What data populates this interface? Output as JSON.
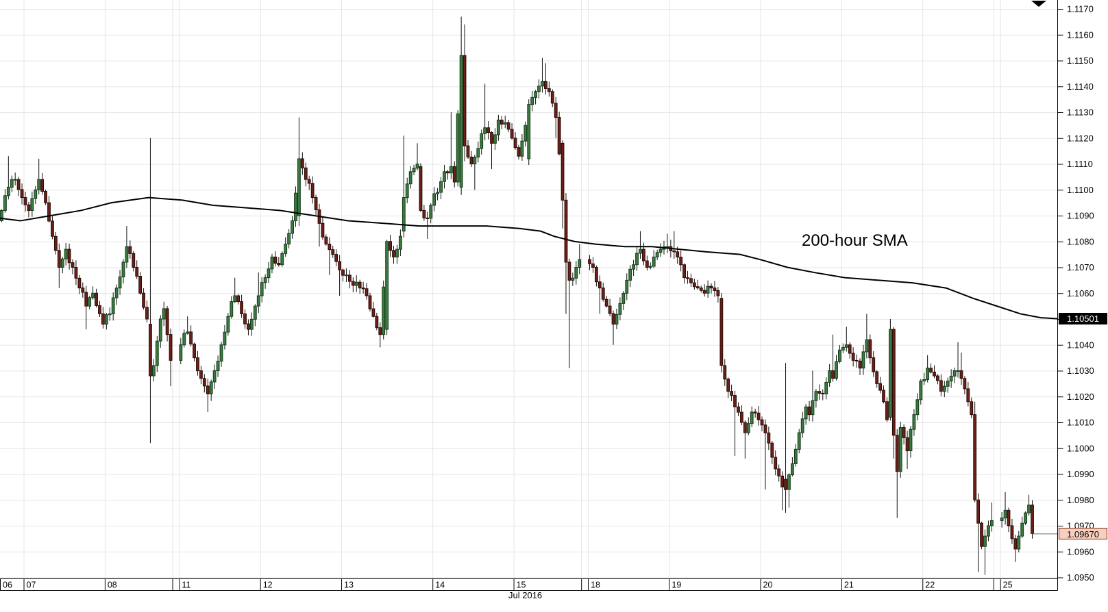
{
  "chart_data": {
    "type": "candlestick",
    "annotation": "200-hour SMA",
    "sma_end_price": "1.10501",
    "sma_end_value": 1.10501,
    "last_price": "1.09670",
    "last_value": 1.0967,
    "last_candle_slot": 305,
    "icons": {
      "chart_shift_marker": "triangle-down"
    },
    "y_axis": {
      "min": 1.095,
      "max": 1.117,
      "step": 0.001,
      "labels": [
        "1.1170",
        "1.1160",
        "1.1150",
        "1.1140",
        "1.1130",
        "1.1120",
        "1.1110",
        "1.1100",
        "1.1090",
        "1.1080",
        "1.1070",
        "1.1060",
        "1.1050",
        "1.1040",
        "1.1030",
        "1.1020",
        "1.1010",
        "1.1000",
        "1.0990",
        "1.0980",
        "1.0970",
        "1.0960",
        "1.0950"
      ]
    },
    "x_axis": {
      "month_label": "Jul 2016",
      "right_margin_slots": 7,
      "days": [
        {
          "label": "06",
          "candles": 7
        },
        {
          "label": "07",
          "candles": 24
        },
        {
          "label": "08",
          "candles": 20,
          "gap_after": 2
        },
        {
          "label": "11",
          "candles": 24
        },
        {
          "label": "12",
          "candles": 24
        },
        {
          "label": "13",
          "candles": 27
        },
        {
          "label": "14",
          "candles": 24
        },
        {
          "label": "15",
          "candles": 20,
          "gap_after": 2
        },
        {
          "label": "18",
          "candles": 24
        },
        {
          "label": "19",
          "candles": 27
        },
        {
          "label": "20",
          "candles": 24
        },
        {
          "label": "21",
          "candles": 24
        },
        {
          "label": "22",
          "candles": 21,
          "gap_after": 2
        },
        {
          "label": "25",
          "candles": 10
        }
      ]
    },
    "price_path": [
      [
        0,
        1.1092
      ],
      [
        2,
        1.1101
      ],
      [
        4,
        1.1104
      ],
      [
        6,
        1.1097
      ],
      [
        8,
        1.1092
      ],
      [
        10,
        1.11
      ],
      [
        11,
        1.1104
      ],
      [
        13,
        1.1095
      ],
      [
        15,
        1.1082
      ],
      [
        17,
        1.107
      ],
      [
        19,
        1.1077
      ],
      [
        21,
        1.107
      ],
      [
        23,
        1.1062
      ],
      [
        25,
        1.1055
      ],
      [
        27,
        1.106
      ],
      [
        29,
        1.1052
      ],
      [
        30,
        1.1048
      ],
      [
        32,
        1.1052
      ],
      [
        34,
        1.1062
      ],
      [
        36,
        1.1072
      ],
      [
        37,
        1.1078
      ],
      [
        39,
        1.107
      ],
      [
        41,
        1.106
      ],
      [
        43,
        1.105
      ],
      [
        44,
        1.1028
      ],
      [
        45,
        1.1032
      ],
      [
        47,
        1.105
      ],
      [
        48,
        1.1054
      ],
      [
        49,
        1.1044
      ],
      [
        50,
        1.1034
      ],
      [
        53,
        1.104
      ],
      [
        55,
        1.1045
      ],
      [
        57,
        1.1035
      ],
      [
        59,
        1.1027
      ],
      [
        61,
        1.1021
      ],
      [
        63,
        1.103
      ],
      [
        65,
        1.104
      ],
      [
        67,
        1.1051
      ],
      [
        69,
        1.1059
      ],
      [
        71,
        1.1052
      ],
      [
        73,
        1.1046
      ],
      [
        75,
        1.1055
      ],
      [
        76,
        1.1059
      ],
      [
        78,
        1.1066
      ],
      [
        80,
        1.1074
      ],
      [
        82,
        1.1071
      ],
      [
        84,
        1.1079
      ],
      [
        86,
        1.1088
      ],
      [
        88,
        1.1112
      ],
      [
        90,
        1.1104
      ],
      [
        92,
        1.1097
      ],
      [
        94,
        1.1087
      ],
      [
        96,
        1.1079
      ],
      [
        98,
        1.1075
      ],
      [
        100,
        1.1069
      ],
      [
        102,
        1.1067
      ],
      [
        104,
        1.1063
      ],
      [
        106,
        1.1062
      ],
      [
        108,
        1.1059
      ],
      [
        110,
        1.1051
      ],
      [
        112,
        1.1044
      ],
      [
        114,
        1.108
      ],
      [
        116,
        1.1074
      ],
      [
        118,
        1.1082
      ],
      [
        119,
        1.1097
      ],
      [
        121,
        1.1107
      ],
      [
        123,
        1.111
      ],
      [
        124,
        1.1092
      ],
      [
        126,
        1.1089
      ],
      [
        127,
        1.1094
      ],
      [
        129,
        1.1099
      ],
      [
        131,
        1.1107
      ],
      [
        133,
        1.1109
      ],
      [
        134,
        1.1103
      ],
      [
        136,
        1.1152
      ],
      [
        137,
        1.1117
      ],
      [
        139,
        1.111
      ],
      [
        141,
        1.1116
      ],
      [
        143,
        1.1124
      ],
      [
        145,
        1.1118
      ],
      [
        147,
        1.1127
      ],
      [
        149,
        1.1126
      ],
      [
        151,
        1.112
      ],
      [
        153,
        1.1113
      ],
      [
        156,
        1.1133
      ],
      [
        158,
        1.1138
      ],
      [
        160,
        1.1142
      ],
      [
        162,
        1.1138
      ],
      [
        164,
        1.1128
      ],
      [
        166,
        1.1096
      ],
      [
        167,
        1.1072
      ],
      [
        168,
        1.1065
      ],
      [
        170,
        1.107
      ],
      [
        171,
        1.1073
      ],
      [
        175,
        1.107
      ],
      [
        177,
        1.1062
      ],
      [
        179,
        1.1055
      ],
      [
        181,
        1.1048
      ],
      [
        183,
        1.1056
      ],
      [
        185,
        1.1065
      ],
      [
        187,
        1.1071
      ],
      [
        189,
        1.1077
      ],
      [
        191,
        1.107
      ],
      [
        193,
        1.1074
      ],
      [
        195,
        1.1077
      ],
      [
        197,
        1.1078
      ],
      [
        199,
        1.1076
      ],
      [
        201,
        1.1071
      ],
      [
        202,
        1.1066
      ],
      [
        204,
        1.1064
      ],
      [
        206,
        1.1062
      ],
      [
        208,
        1.106
      ],
      [
        210,
        1.1062
      ],
      [
        212,
        1.1059
      ],
      [
        213,
        1.1032
      ],
      [
        215,
        1.1022
      ],
      [
        217,
        1.1016
      ],
      [
        219,
        1.101
      ],
      [
        220,
        1.1006
      ],
      [
        222,
        1.1014
      ],
      [
        224,
        1.1011
      ],
      [
        225,
        1.1009
      ],
      [
        227,
        1.1002
      ],
      [
        229,
        1.0992
      ],
      [
        231,
        1.0985
      ],
      [
        232,
        1.0984
      ],
      [
        234,
        1.0994
      ],
      [
        236,
        1.1006
      ],
      [
        238,
        1.1016
      ],
      [
        239,
        1.1013
      ],
      [
        241,
        1.1022
      ],
      [
        243,
        1.1021
      ],
      [
        245,
        1.103
      ],
      [
        246,
        1.1027
      ],
      [
        248,
        1.1038
      ],
      [
        250,
        1.104
      ],
      [
        252,
        1.1034
      ],
      [
        254,
        1.1031
      ],
      [
        256,
        1.1042
      ],
      [
        257,
        1.1035
      ],
      [
        259,
        1.1025
      ],
      [
        261,
        1.1018
      ],
      [
        262,
        1.1011
      ],
      [
        263,
        1.1046
      ],
      [
        264,
        1.1005
      ],
      [
        265,
        1.0991
      ],
      [
        266,
        1.1008
      ],
      [
        268,
        1.0999
      ],
      [
        270,
        1.1013
      ],
      [
        272,
        1.1026
      ],
      [
        274,
        1.1031
      ],
      [
        276,
        1.1028
      ],
      [
        278,
        1.1022
      ],
      [
        280,
        1.1026
      ],
      [
        282,
        1.103
      ],
      [
        283,
        1.103
      ],
      [
        284,
        1.1027
      ],
      [
        285,
        1.1023
      ],
      [
        286,
        1.1018
      ],
      [
        287,
        1.1013
      ],
      [
        288,
        1.098
      ],
      [
        289,
        1.0971
      ],
      [
        290,
        1.0962
      ],
      [
        291,
        1.0966
      ],
      [
        292,
        1.097
      ],
      [
        293,
        1.0972
      ],
      [
        296,
        1.0973
      ],
      [
        297,
        1.0976
      ],
      [
        298,
        1.097
      ],
      [
        299,
        1.0965
      ],
      [
        300,
        1.0961
      ],
      [
        301,
        1.0966
      ],
      [
        302,
        1.0971
      ],
      [
        303,
        1.0975
      ],
      [
        304,
        1.0978
      ],
      [
        305,
        1.0967
      ]
    ],
    "events": [
      {
        "i": 2,
        "h": 1.1113
      },
      {
        "i": 11,
        "h": 1.1112
      },
      {
        "i": 17,
        "l": 1.1062
      },
      {
        "i": 25,
        "l": 1.1046
      },
      {
        "i": 37,
        "h": 1.1086
      },
      {
        "i": 44,
        "o": 1.1048,
        "h": 1.112,
        "l": 1.1002,
        "c": 1.1028
      },
      {
        "i": 50,
        "l": 1.1024
      },
      {
        "i": 55,
        "h": 1.1051
      },
      {
        "i": 61,
        "l": 1.1014
      },
      {
        "i": 69,
        "h": 1.1066
      },
      {
        "i": 76,
        "h": 1.1068
      },
      {
        "i": 88,
        "o": 1.109,
        "h": 1.1128,
        "l": 1.1086,
        "c": 1.1112
      },
      {
        "i": 94,
        "l": 1.1078
      },
      {
        "i": 97,
        "l": 1.1067
      },
      {
        "i": 100,
        "l": 1.1059
      },
      {
        "i": 112,
        "l": 1.1039
      },
      {
        "i": 114,
        "o": 1.1046,
        "c": 1.108
      },
      {
        "i": 119,
        "o": 1.1084,
        "h": 1.1121,
        "c": 1.1097
      },
      {
        "i": 123,
        "h": 1.1118
      },
      {
        "i": 124,
        "o": 1.1109,
        "c": 1.1092
      },
      {
        "i": 126,
        "l": 1.1081
      },
      {
        "i": 133,
        "h": 1.113
      },
      {
        "i": 136,
        "o": 1.1101,
        "h": 1.1167,
        "l": 1.1098,
        "c": 1.1152
      },
      {
        "i": 137,
        "o": 1.1152,
        "h": 1.1164,
        "l": 1.1111,
        "c": 1.1117
      },
      {
        "i": 140,
        "l": 1.11
      },
      {
        "i": 143,
        "h": 1.1141
      },
      {
        "i": 145,
        "l": 1.1108
      },
      {
        "i": 156,
        "o": 1.1112,
        "c": 1.1133
      },
      {
        "i": 160,
        "h": 1.1151
      },
      {
        "i": 161,
        "h": 1.1149
      },
      {
        "i": 164,
        "l": 1.112
      },
      {
        "i": 166,
        "o": 1.1118,
        "c": 1.1096,
        "l": 1.1085
      },
      {
        "i": 167,
        "o": 1.1096,
        "c": 1.1072,
        "l": 1.1052
      },
      {
        "i": 168,
        "l": 1.1031
      },
      {
        "i": 171,
        "h": 1.1079
      },
      {
        "i": 177,
        "l": 1.1052
      },
      {
        "i": 181,
        "l": 1.104
      },
      {
        "i": 189,
        "h": 1.1084
      },
      {
        "i": 197,
        "h": 1.1083
      },
      {
        "i": 199,
        "h": 1.1084
      },
      {
        "i": 213,
        "o": 1.1058,
        "c": 1.1032
      },
      {
        "i": 217,
        "l": 1.0997
      },
      {
        "i": 220,
        "l": 1.0996
      },
      {
        "i": 226,
        "l": 1.0984
      },
      {
        "i": 231,
        "l": 1.0976
      },
      {
        "i": 232,
        "o": 1.0988,
        "h": 1.1033,
        "l": 1.0975,
        "c": 1.0984
      },
      {
        "i": 233,
        "l": 1.0977
      },
      {
        "i": 240,
        "h": 1.103
      },
      {
        "i": 246,
        "h": 1.1044
      },
      {
        "i": 250,
        "h": 1.1047
      },
      {
        "i": 256,
        "h": 1.1052
      },
      {
        "i": 263,
        "o": 1.1012,
        "h": 1.105,
        "c": 1.1046
      },
      {
        "i": 264,
        "o": 1.1046,
        "l": 1.0996,
        "c": 1.1005
      },
      {
        "i": 265,
        "o": 1.1005,
        "l": 1.0973,
        "c": 1.0991
      },
      {
        "i": 268,
        "l": 1.0992
      },
      {
        "i": 274,
        "h": 1.1036
      },
      {
        "i": 283,
        "h": 1.1041
      },
      {
        "i": 284,
        "h": 1.1037
      },
      {
        "i": 288,
        "o": 1.1013,
        "h": 1.1018,
        "c": 1.098
      },
      {
        "i": 289,
        "o": 1.098,
        "l": 1.0952,
        "c": 1.0971
      },
      {
        "i": 291,
        "l": 1.0951
      },
      {
        "i": 293,
        "h": 1.0979
      },
      {
        "i": 297,
        "h": 1.0983
      },
      {
        "i": 300,
        "l": 1.0956
      },
      {
        "i": 304,
        "h": 1.0982
      },
      {
        "i": 305,
        "o": 1.0978,
        "l": 1.0965,
        "c": 1.0967
      }
    ],
    "sma_path": [
      [
        0,
        1.1089
      ],
      [
        6,
        1.1088
      ],
      [
        15,
        1.109
      ],
      [
        24,
        1.1092
      ],
      [
        33,
        1.1095
      ],
      [
        44,
        1.1097
      ],
      [
        54,
        1.1096
      ],
      [
        63,
        1.1094
      ],
      [
        73,
        1.1093
      ],
      [
        83,
        1.1092
      ],
      [
        93,
        1.109
      ],
      [
        103,
        1.1088
      ],
      [
        114,
        1.1087
      ],
      [
        124,
        1.1086
      ],
      [
        134,
        1.1086
      ],
      [
        144,
        1.1086
      ],
      [
        154,
        1.1085
      ],
      [
        160,
        1.1084
      ],
      [
        164,
        1.1082
      ],
      [
        170,
        1.108
      ],
      [
        176,
        1.1079
      ],
      [
        185,
        1.1078
      ],
      [
        193,
        1.1078
      ],
      [
        201,
        1.1077
      ],
      [
        209,
        1.1076
      ],
      [
        219,
        1.1075
      ],
      [
        225,
        1.1073
      ],
      [
        233,
        1.107
      ],
      [
        241,
        1.1068
      ],
      [
        250,
        1.1066
      ],
      [
        260,
        1.1065
      ],
      [
        270,
        1.1064
      ],
      [
        280,
        1.1062
      ],
      [
        288,
        1.1058
      ],
      [
        295,
        1.1055
      ],
      [
        302,
        1.1052
      ],
      [
        308,
        1.10505
      ],
      [
        313,
        1.10501
      ]
    ],
    "colors": {
      "background": "#FFFFFF",
      "bull_fill": "#3D7A41",
      "bull_stroke": "#123A18",
      "bear_fill": "#6B201A",
      "bear_stroke": "#2A0B06",
      "wick": "#101010",
      "sma": "#000000",
      "grid": "#E5E5E5",
      "axis": "#000000",
      "bid_line": "#6E6E6E",
      "bid_tag_bg": "#F8CFBE",
      "bid_tag_border": "#73281D",
      "bid_tag_text": "#000000",
      "sma_tag_bg": "#000000",
      "sma_tag_text": "#FFFFFF"
    }
  }
}
